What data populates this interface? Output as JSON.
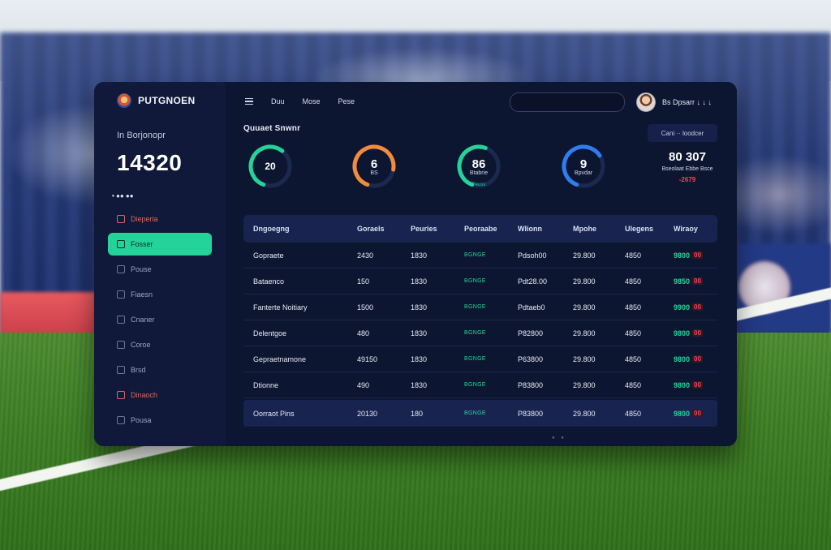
{
  "brand": {
    "name": "PUTGNOEN"
  },
  "sidebar": {
    "label": "In Borjonopr",
    "value": "14320",
    "dots": "• ●● ●●",
    "items": [
      {
        "label": "Dieperia",
        "state": "warning"
      },
      {
        "label": "Fosser",
        "state": "active"
      },
      {
        "label": "Pouse",
        "state": "normal"
      },
      {
        "label": "Fiaesn",
        "state": "normal"
      },
      {
        "label": "Cnaner",
        "state": "normal"
      },
      {
        "label": "Coroe",
        "state": "normal"
      },
      {
        "label": "Brsd",
        "state": "normal"
      },
      {
        "label": "Dinaoch",
        "state": "warning"
      },
      {
        "label": "Pousa",
        "state": "normal"
      }
    ]
  },
  "topbar": {
    "menu": [
      "Duu",
      "Mose",
      "Pese"
    ],
    "search_placeholder": "",
    "user_name": "Bs Dpsarr ↓ ↓ ↓"
  },
  "section": {
    "title": "Quuaet Snwnr",
    "filter_label": "Cani ·· loodcer"
  },
  "gauges": [
    {
      "value": "20",
      "sub": "",
      "note": "",
      "percent": 0.55,
      "color": "#25d39a"
    },
    {
      "value": "6",
      "sub": "BS",
      "note": "",
      "percent": 0.72,
      "color": "#f28b3c"
    },
    {
      "value": "86",
      "sub": "Btabrie",
      "note": "Peuss",
      "percent": 0.5,
      "color": "#25d39a"
    },
    {
      "value": "9",
      "sub": "Bpvdar",
      "note": "",
      "percent": 0.6,
      "color": "#2f7df0"
    }
  ],
  "stat_card": {
    "value": "80 307",
    "sub": "Bseolaat Ebbe Bsce",
    "delta": "-2679"
  },
  "table": {
    "headers": [
      "Dngoegng",
      "Goraels",
      "Peuries",
      "Peoraabe",
      "Wlionn",
      "Mpohe",
      "Ulegens",
      "Wiraoy"
    ],
    "rows": [
      [
        "Gopraete",
        "2430",
        "1830",
        "BGNGE",
        "Pdsoh00",
        "29.800",
        "4850",
        "9800",
        "00"
      ],
      [
        "Bataenco",
        "150",
        "1830",
        "BGNGE",
        "Pdt28.00",
        "29.800",
        "4850",
        "9850",
        "00"
      ],
      [
        "Fanterte Noitiary",
        "1500",
        "1830",
        "BGNGE",
        "Pdtaeb0",
        "29.800",
        "4850",
        "9900",
        "00"
      ],
      [
        "Delentgoe",
        "480",
        "1830",
        "BGNGE",
        "P82800",
        "29.800",
        "4850",
        "9800",
        "00"
      ],
      [
        "Gepraetnamone",
        "49150",
        "1830",
        "BGNGE",
        "P63800",
        "29.800",
        "4850",
        "9800",
        "00"
      ],
      [
        "Dtionne",
        "490",
        "1830",
        "BGNGE",
        "P83800",
        "29.800",
        "4850",
        "9800",
        "00"
      ]
    ],
    "total": [
      "Oorraot Pins",
      "20130",
      "180",
      "BGNGE",
      "P83800",
      "29.800",
      "4850",
      "9800",
      "00"
    ]
  },
  "pager": "● ●"
}
